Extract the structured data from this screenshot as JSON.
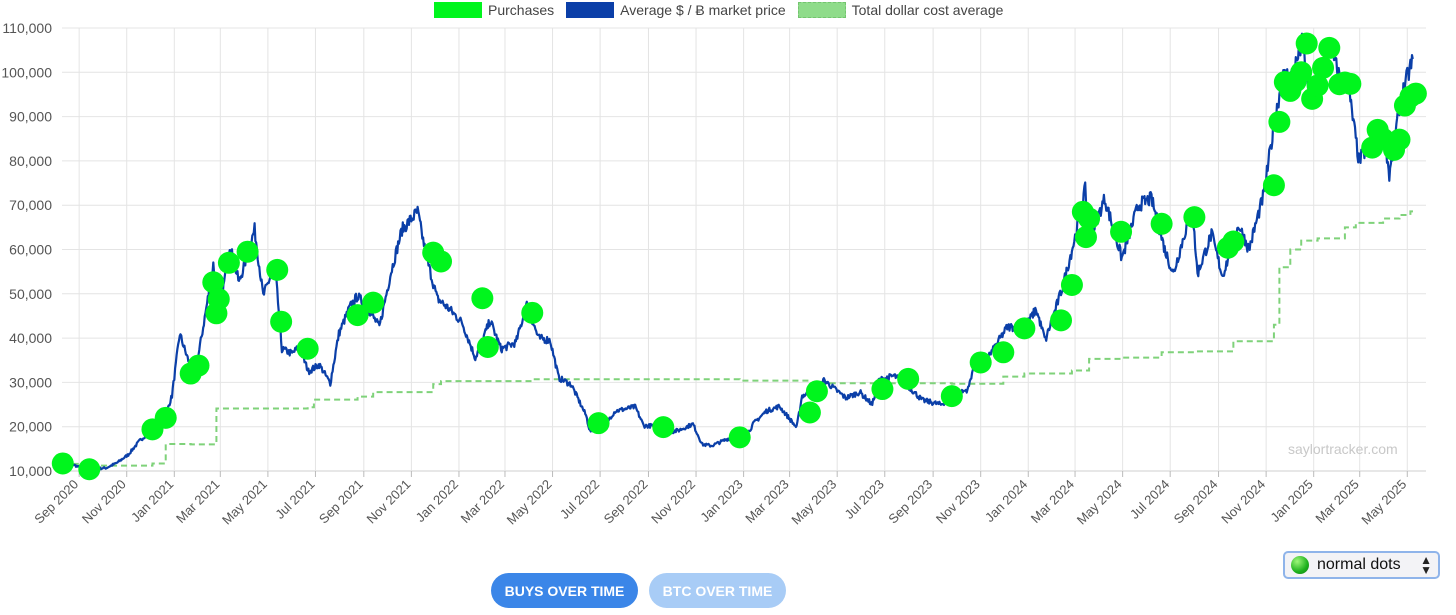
{
  "legend": {
    "purchases": "Purchases",
    "price": "Average $ / Ƀ market price",
    "dca": "Total dollar cost average"
  },
  "watermark": "saylortracker.com",
  "buttons": {
    "buys": "BUYS OVER TIME",
    "btc": "BTC OVER TIME"
  },
  "dot_style_select": {
    "value": "normal dots",
    "icon": "green-ball-icon"
  },
  "colors": {
    "purchases": "#00f51d",
    "price": "#0b3fa8",
    "dca": "#7fd27a",
    "grid": "#e4e4e4"
  },
  "chart_data": {
    "type": "line",
    "x_axis_type": "date",
    "ylim": [
      10000,
      110000
    ],
    "yticks": [
      10000,
      20000,
      30000,
      40000,
      50000,
      60000,
      70000,
      80000,
      90000,
      100000,
      110000
    ],
    "ytick_labels": [
      "10,000",
      "20,000",
      "30,000",
      "40,000",
      "50,000",
      "60,000",
      "70,000",
      "80,000",
      "90,000",
      "100,000",
      "110,000"
    ],
    "xlim": [
      "2020-08-10",
      "2025-05-25"
    ],
    "xticks": [
      "2020-09-01",
      "2020-11-01",
      "2021-01-01",
      "2021-03-01",
      "2021-05-01",
      "2021-07-01",
      "2021-09-01",
      "2021-11-01",
      "2022-01-01",
      "2022-03-01",
      "2022-05-01",
      "2022-07-01",
      "2022-09-01",
      "2022-11-01",
      "2023-01-01",
      "2023-03-01",
      "2023-05-01",
      "2023-07-01",
      "2023-09-01",
      "2023-11-01",
      "2024-01-01",
      "2024-03-01",
      "2024-05-01",
      "2024-07-01",
      "2024-09-01",
      "2024-11-01",
      "2025-01-01",
      "2025-03-01",
      "2025-05-01"
    ],
    "xtick_labels": [
      "Sep 2020",
      "Nov 2020",
      "Jan 2021",
      "Mar 2021",
      "May 2021",
      "Jul 2021",
      "Sep 2021",
      "Nov 2021",
      "Jan 2022",
      "Mar 2022",
      "May 2022",
      "Jul 2022",
      "Sep 2022",
      "Nov 2022",
      "Jan 2023",
      "Mar 2023",
      "May 2023",
      "Jul 2023",
      "Sep 2023",
      "Nov 2023",
      "Jan 2024",
      "Mar 2024",
      "May 2024",
      "Jul 2024",
      "Sep 2024",
      "Nov 2024",
      "Jan 2025",
      "Mar 2025",
      "May 2025"
    ],
    "grid": true,
    "legend_position": "top-center",
    "series": [
      {
        "name": "Average $ / Ƀ market price",
        "kind": "line",
        "points": [
          [
            "2020-08-11",
            11500
          ],
          [
            "2020-08-25",
            11400
          ],
          [
            "2020-09-08",
            10300
          ],
          [
            "2020-09-22",
            10500
          ],
          [
            "2020-10-06",
            10700
          ],
          [
            "2020-10-20",
            11900
          ],
          [
            "2020-11-03",
            13700
          ],
          [
            "2020-11-17",
            16700
          ],
          [
            "2020-12-01",
            19000
          ],
          [
            "2020-12-15",
            19400
          ],
          [
            "2020-12-29",
            27000
          ],
          [
            "2021-01-08",
            41000
          ],
          [
            "2021-01-16",
            36500
          ],
          [
            "2021-01-27",
            31000
          ],
          [
            "2021-02-08",
            43500
          ],
          [
            "2021-02-20",
            56500
          ],
          [
            "2021-02-28",
            45500
          ],
          [
            "2021-03-13",
            61000
          ],
          [
            "2021-03-25",
            52500
          ],
          [
            "2021-04-14",
            64500
          ],
          [
            "2021-04-25",
            49500
          ],
          [
            "2021-05-10",
            56500
          ],
          [
            "2021-05-19",
            37500
          ],
          [
            "2021-06-01",
            36500
          ],
          [
            "2021-06-10",
            38000
          ],
          [
            "2021-06-22",
            32500
          ],
          [
            "2021-07-06",
            34000
          ],
          [
            "2021-07-20",
            29800
          ],
          [
            "2021-07-31",
            41000
          ],
          [
            "2021-08-14",
            47000
          ],
          [
            "2021-08-24",
            49500
          ],
          [
            "2021-09-07",
            46500
          ],
          [
            "2021-09-21",
            42500
          ],
          [
            "2021-10-06",
            55000
          ],
          [
            "2021-10-20",
            64500
          ],
          [
            "2021-11-09",
            68500
          ],
          [
            "2021-11-20",
            58500
          ],
          [
            "2021-12-04",
            49000
          ],
          [
            "2021-12-20",
            46500
          ],
          [
            "2022-01-05",
            43500
          ],
          [
            "2022-01-22",
            35500
          ],
          [
            "2022-02-10",
            44000
          ],
          [
            "2022-02-24",
            37500
          ],
          [
            "2022-03-15",
            39000
          ],
          [
            "2022-03-29",
            47500
          ],
          [
            "2022-04-13",
            40000
          ],
          [
            "2022-04-28",
            39500
          ],
          [
            "2022-05-09",
            31000
          ],
          [
            "2022-05-25",
            29500
          ],
          [
            "2022-06-13",
            22500
          ],
          [
            "2022-06-18",
            19000
          ],
          [
            "2022-07-05",
            20000
          ],
          [
            "2022-07-20",
            23500
          ],
          [
            "2022-08-15",
            24500
          ],
          [
            "2022-08-26",
            20200
          ],
          [
            "2022-09-13",
            20200
          ],
          [
            "2022-09-21",
            18500
          ],
          [
            "2022-10-10",
            19200
          ],
          [
            "2022-10-28",
            20600
          ],
          [
            "2022-11-09",
            16000
          ],
          [
            "2022-11-21",
            15700
          ],
          [
            "2022-12-15",
            17500
          ],
          [
            "2022-12-31",
            16500
          ],
          [
            "2023-01-14",
            20800
          ],
          [
            "2023-01-30",
            23500
          ],
          [
            "2023-02-16",
            24600
          ],
          [
            "2023-03-10",
            19800
          ],
          [
            "2023-03-17",
            27000
          ],
          [
            "2023-04-04",
            28000
          ],
          [
            "2023-04-14",
            30500
          ],
          [
            "2023-05-12",
            26500
          ],
          [
            "2023-05-30",
            27800
          ],
          [
            "2023-06-15",
            25000
          ],
          [
            "2023-06-23",
            30500
          ],
          [
            "2023-07-13",
            31500
          ],
          [
            "2023-07-30",
            29300
          ],
          [
            "2023-08-18",
            26000
          ],
          [
            "2023-09-11",
            25000
          ],
          [
            "2023-09-29",
            27000
          ],
          [
            "2023-10-16",
            28500
          ],
          [
            "2023-10-24",
            34500
          ],
          [
            "2023-11-14",
            36500
          ],
          [
            "2023-12-05",
            42500
          ],
          [
            "2023-12-28",
            42500
          ],
          [
            "2024-01-11",
            46500
          ],
          [
            "2024-01-23",
            39500
          ],
          [
            "2024-02-14",
            51500
          ],
          [
            "2024-02-29",
            62000
          ],
          [
            "2024-03-14",
            73500
          ],
          [
            "2024-03-20",
            62500
          ],
          [
            "2024-04-08",
            71500
          ],
          [
            "2024-04-30",
            58000
          ],
          [
            "2024-05-21",
            70000
          ],
          [
            "2024-06-07",
            71500
          ],
          [
            "2024-06-24",
            60000
          ],
          [
            "2024-07-05",
            54500
          ],
          [
            "2024-07-29",
            69500
          ],
          [
            "2024-08-05",
            54500
          ],
          [
            "2024-08-23",
            63500
          ],
          [
            "2024-09-06",
            54000
          ],
          [
            "2024-09-27",
            65500
          ],
          [
            "2024-10-10",
            60000
          ],
          [
            "2024-10-29",
            72500
          ],
          [
            "2024-11-12",
            89000
          ],
          [
            "2024-11-22",
            99000
          ],
          [
            "2024-12-05",
            99500
          ],
          [
            "2024-12-17",
            106500
          ],
          [
            "2024-12-30",
            92500
          ],
          [
            "2025-01-21",
            106000
          ],
          [
            "2025-02-03",
            99000
          ],
          [
            "2025-02-14",
            97000
          ],
          [
            "2025-02-28",
            80000
          ],
          [
            "2025-03-14",
            84000
          ],
          [
            "2025-04-02",
            85500
          ],
          [
            "2025-04-08",
            76500
          ],
          [
            "2025-04-22",
            93500
          ],
          [
            "2025-05-08",
            103000
          ]
        ]
      },
      {
        "name": "Total dollar cost average",
        "kind": "step-dashed",
        "points": [
          [
            "2020-08-11",
            11600
          ],
          [
            "2020-09-14",
            11200
          ],
          [
            "2020-12-04",
            11700
          ],
          [
            "2020-12-21",
            16100
          ],
          [
            "2021-01-22",
            16000
          ],
          [
            "2021-02-24",
            24100
          ],
          [
            "2021-06-21",
            24400
          ],
          [
            "2021-06-29",
            26100
          ],
          [
            "2021-08-24",
            26800
          ],
          [
            "2021-09-13",
            27800
          ],
          [
            "2021-11-29",
            29600
          ],
          [
            "2021-12-09",
            30300
          ],
          [
            "2022-04-05",
            30700
          ],
          [
            "2022-06-29",
            30700
          ],
          [
            "2022-12-27",
            30400
          ],
          [
            "2023-03-27",
            29800
          ],
          [
            "2023-04-05",
            29800
          ],
          [
            "2023-09-25",
            29700
          ],
          [
            "2023-11-30",
            31300
          ],
          [
            "2023-12-27",
            32000
          ],
          [
            "2024-02-26",
            32700
          ],
          [
            "2024-03-19",
            35300
          ],
          [
            "2024-04-29",
            35600
          ],
          [
            "2024-06-20",
            36800
          ],
          [
            "2024-08-01",
            37000
          ],
          [
            "2024-09-20",
            39300
          ],
          [
            "2024-11-11",
            43000
          ],
          [
            "2024-11-18",
            56000
          ],
          [
            "2024-12-02",
            60000
          ],
          [
            "2024-12-16",
            62000
          ],
          [
            "2025-01-06",
            62500
          ],
          [
            "2025-02-10",
            65000
          ],
          [
            "2025-02-24",
            66000
          ],
          [
            "2025-03-31",
            67000
          ],
          [
            "2025-04-21",
            67800
          ],
          [
            "2025-05-05",
            68600
          ],
          [
            "2025-05-12",
            68700
          ]
        ]
      },
      {
        "name": "Purchases",
        "kind": "scatter",
        "points": [
          [
            "2020-08-11",
            11700
          ],
          [
            "2020-09-14",
            10400
          ],
          [
            "2020-12-04",
            19400
          ],
          [
            "2020-12-21",
            22000
          ],
          [
            "2021-01-22",
            32000
          ],
          [
            "2021-02-01",
            33800
          ],
          [
            "2021-02-24",
            45600
          ],
          [
            "2021-02-20",
            52600
          ],
          [
            "2021-02-27",
            48800
          ],
          [
            "2021-03-12",
            57000
          ],
          [
            "2021-04-05",
            59500
          ],
          [
            "2021-05-13",
            55400
          ],
          [
            "2021-05-18",
            43700
          ],
          [
            "2021-06-21",
            37600
          ],
          [
            "2021-08-24",
            45200
          ],
          [
            "2021-09-13",
            48000
          ],
          [
            "2021-11-29",
            59300
          ],
          [
            "2021-12-09",
            57300
          ],
          [
            "2022-01-31",
            49000
          ],
          [
            "2022-02-07",
            38000
          ],
          [
            "2022-04-05",
            45700
          ],
          [
            "2022-06-29",
            20800
          ],
          [
            "2022-09-20",
            19900
          ],
          [
            "2022-12-27",
            17600
          ],
          [
            "2023-03-27",
            23200
          ],
          [
            "2023-04-05",
            28000
          ],
          [
            "2023-06-28",
            28500
          ],
          [
            "2023-07-31",
            30800
          ],
          [
            "2023-09-25",
            26900
          ],
          [
            "2023-11-01",
            34500
          ],
          [
            "2023-11-30",
            36800
          ],
          [
            "2023-12-27",
            42200
          ],
          [
            "2024-02-12",
            44000
          ],
          [
            "2024-02-26",
            52000
          ],
          [
            "2024-03-11",
            68500
          ],
          [
            "2024-03-19",
            67000
          ],
          [
            "2024-03-15",
            62800
          ],
          [
            "2024-04-29",
            64000
          ],
          [
            "2024-06-20",
            65800
          ],
          [
            "2024-08-01",
            67300
          ],
          [
            "2024-09-13",
            60400
          ],
          [
            "2024-09-20",
            61800
          ],
          [
            "2024-11-11",
            74500
          ],
          [
            "2024-11-18",
            88800
          ],
          [
            "2024-11-25",
            97800
          ],
          [
            "2024-12-02",
            95800
          ],
          [
            "2024-12-09",
            98000
          ],
          [
            "2024-12-16",
            100000
          ],
          [
            "2024-12-23",
            106500
          ],
          [
            "2024-12-30",
            94000
          ],
          [
            "2025-01-06",
            97000
          ],
          [
            "2025-01-13",
            101000
          ],
          [
            "2025-01-21",
            105500
          ],
          [
            "2025-02-03",
            97300
          ],
          [
            "2025-02-10",
            97700
          ],
          [
            "2025-02-17",
            97400
          ],
          [
            "2025-03-17",
            83000
          ],
          [
            "2025-03-24",
            87000
          ],
          [
            "2025-03-31",
            85000
          ],
          [
            "2025-04-14",
            82500
          ],
          [
            "2025-04-21",
            84800
          ],
          [
            "2025-04-28",
            92500
          ],
          [
            "2025-05-05",
            94500
          ],
          [
            "2025-05-12",
            95200
          ]
        ]
      }
    ]
  }
}
